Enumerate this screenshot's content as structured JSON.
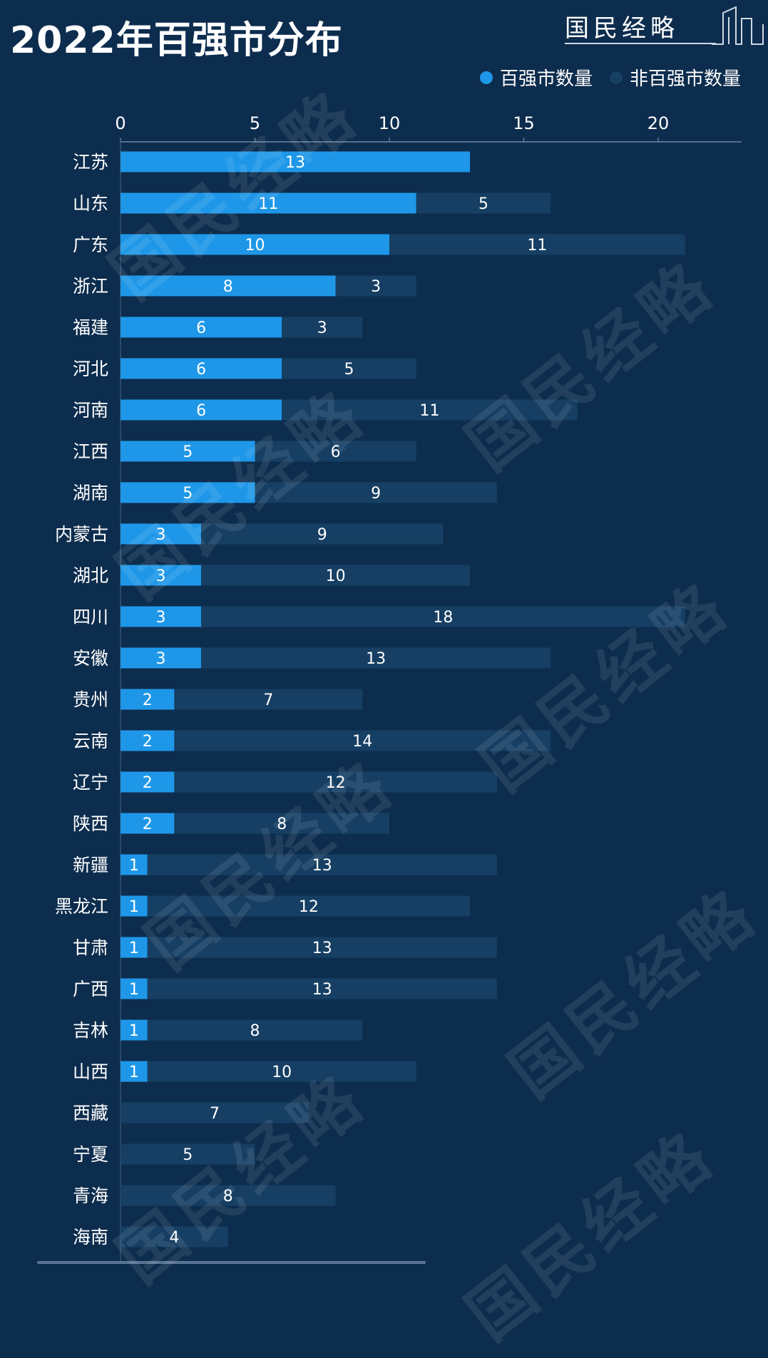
{
  "header": {
    "title": "2022年百强市分布",
    "brand": "国民经略"
  },
  "watermark": {
    "text": "国民经略"
  },
  "colors": {
    "background": "#0d2d4e",
    "top100": "#1f97e8",
    "non_top100": "#163f63"
  },
  "chart_data": {
    "type": "bar",
    "orientation": "horizontal",
    "stacked": true,
    "categories": [
      "江苏",
      "山东",
      "广东",
      "浙江",
      "福建",
      "河北",
      "河南",
      "江西",
      "湖南",
      "内蒙古",
      "湖北",
      "四川",
      "安徽",
      "贵州",
      "云南",
      "辽宁",
      "陕西",
      "新疆",
      "黑龙江",
      "甘肃",
      "广西",
      "吉林",
      "山西",
      "西藏",
      "宁夏",
      "青海",
      "海南"
    ],
    "series": [
      {
        "name": "百强市数量",
        "color": "#1f97e8",
        "values": [
          13,
          11,
          10,
          8,
          6,
          6,
          6,
          5,
          5,
          3,
          3,
          3,
          3,
          2,
          2,
          2,
          2,
          1,
          1,
          1,
          1,
          1,
          1,
          0,
          0,
          0,
          0
        ]
      },
      {
        "name": "非百强市数量",
        "color": "#163f63",
        "values": [
          0,
          5,
          11,
          3,
          3,
          5,
          11,
          6,
          9,
          9,
          10,
          18,
          13,
          7,
          14,
          12,
          8,
          13,
          12,
          13,
          13,
          8,
          10,
          7,
          5,
          8,
          4
        ]
      }
    ],
    "x_ticks": [
      0,
      5,
      10,
      15,
      20
    ],
    "xlim": [
      0,
      23
    ],
    "x_axis_position": "top",
    "legend_position": "top-right",
    "data_labels": true
  }
}
